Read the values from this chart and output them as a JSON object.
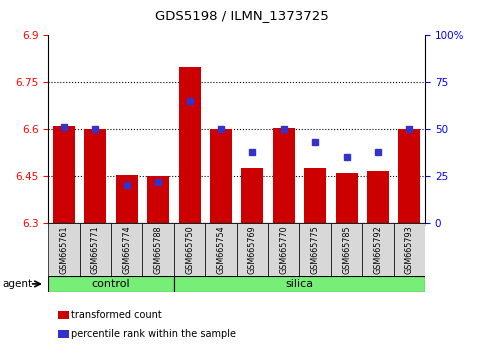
{
  "title": "GDS5198 / ILMN_1373725",
  "samples": [
    "GSM665761",
    "GSM665771",
    "GSM665774",
    "GSM665788",
    "GSM665750",
    "GSM665754",
    "GSM665769",
    "GSM665770",
    "GSM665775",
    "GSM665785",
    "GSM665792",
    "GSM665793"
  ],
  "red_values": [
    6.61,
    6.6,
    6.455,
    6.45,
    6.8,
    6.6,
    6.475,
    6.605,
    6.475,
    6.46,
    6.465,
    6.6
  ],
  "blue_percentiles": [
    51,
    50,
    20,
    22,
    65,
    50,
    38,
    50,
    43,
    35,
    38,
    50
  ],
  "n_control": 4,
  "y_min": 6.3,
  "y_max": 6.9,
  "y_ticks": [
    6.3,
    6.45,
    6.6,
    6.75,
    6.9
  ],
  "y_tick_labels": [
    "6.3",
    "6.45",
    "6.6",
    "6.75",
    "6.9"
  ],
  "y2_ticks": [
    0,
    25,
    50,
    75,
    100
  ],
  "y2_tick_labels": [
    "0",
    "25",
    "50",
    "75",
    "100%"
  ],
  "grid_lines": [
    6.45,
    6.6,
    6.75
  ],
  "bar_color": "#cc0000",
  "blue_color": "#3333cc",
  "group_color": "#77ee77",
  "agent_label": "agent",
  "legend_items": [
    "transformed count",
    "percentile rank within the sample"
  ],
  "bg_color": "#f0f0f0"
}
